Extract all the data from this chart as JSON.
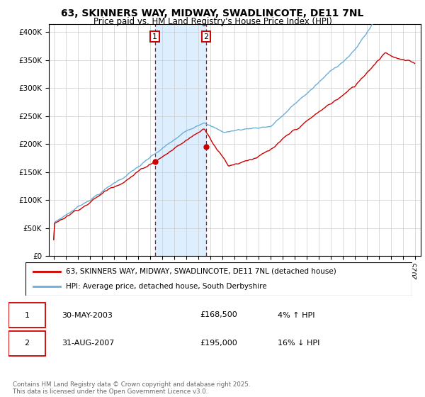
{
  "title_line1": "63, SKINNERS WAY, MIDWAY, SWADLINCOTE, DE11 7NL",
  "title_line2": "Price paid vs. HM Land Registry's House Price Index (HPI)",
  "ylabel_ticks": [
    "£0",
    "£50K",
    "£100K",
    "£150K",
    "£200K",
    "£250K",
    "£300K",
    "£350K",
    "£400K"
  ],
  "ytick_values": [
    0,
    50000,
    100000,
    150000,
    200000,
    250000,
    300000,
    350000,
    400000
  ],
  "ylim": [
    0,
    415000
  ],
  "xlim_start": 1994.6,
  "xlim_end": 2025.5,
  "xticks": [
    1995,
    1996,
    1997,
    1998,
    1999,
    2000,
    2001,
    2002,
    2003,
    2004,
    2005,
    2006,
    2007,
    2008,
    2009,
    2010,
    2011,
    2012,
    2013,
    2014,
    2015,
    2016,
    2017,
    2018,
    2019,
    2020,
    2021,
    2022,
    2023,
    2024,
    2025
  ],
  "hpi_color": "#6baed6",
  "price_color": "#cc0000",
  "sale1_x": 2003.41,
  "sale1_y": 168500,
  "sale2_x": 2007.66,
  "sale2_y": 195000,
  "shade_color": "#ddeeff",
  "legend_label1": "63, SKINNERS WAY, MIDWAY, SWADLINCOTE, DE11 7NL (detached house)",
  "legend_label2": "HPI: Average price, detached house, South Derbyshire",
  "ann1_date": "30-MAY-2003",
  "ann1_price": "£168,500",
  "ann1_hpi": "4% ↑ HPI",
  "ann2_date": "31-AUG-2007",
  "ann2_price": "£195,000",
  "ann2_hpi": "16% ↓ HPI",
  "footer": "Contains HM Land Registry data © Crown copyright and database right 2025.\nThis data is licensed under the Open Government Licence v3.0.",
  "background_color": "#ffffff",
  "grid_color": "#cccccc"
}
